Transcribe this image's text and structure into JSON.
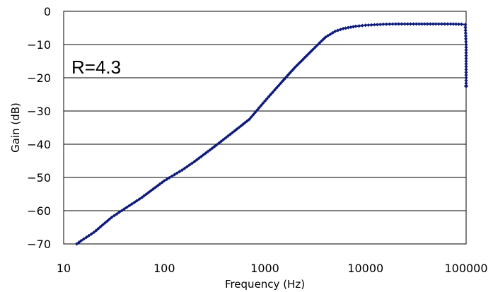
{
  "chart_data": {
    "type": "line",
    "title": "",
    "xlabel": "Frequency (Hz)",
    "ylabel": "Gain (dB)",
    "x_scale": "log",
    "xlim": [
      10,
      100000
    ],
    "ylim": [
      -70,
      0
    ],
    "x_ticks": [
      "10",
      "100",
      "1000",
      "10000",
      "100000"
    ],
    "y_ticks": [
      "0",
      "−10",
      "−20",
      "−30",
      "−40",
      "−50",
      "−60",
      "−70"
    ],
    "grid": "horizontal",
    "legend": "none",
    "annotation": "R=4.3",
    "series_color": "#0d1a7a",
    "series": [
      {
        "x": [
          13.5,
          15,
          20,
          30,
          40,
          60,
          100,
          150,
          200,
          300,
          500,
          700,
          1000,
          1500,
          2000,
          3000,
          3500,
          4000,
          5000,
          6000,
          8000,
          10000,
          15000,
          20000,
          30000,
          50000,
          70000,
          90000,
          98000,
          100000,
          100000
        ],
        "y": [
          -70,
          -69,
          -66.5,
          -62,
          -59.5,
          -56,
          -51,
          -47.8,
          -45.2,
          -41.2,
          -36,
          -32.5,
          -27,
          -21,
          -16.8,
          -11.5,
          -9.5,
          -7.8,
          -6,
          -5.2,
          -4.5,
          -4.2,
          -3.9,
          -3.8,
          -3.8,
          -3.8,
          -3.8,
          -3.9,
          -4,
          -10,
          -22.5
        ]
      }
    ]
  }
}
